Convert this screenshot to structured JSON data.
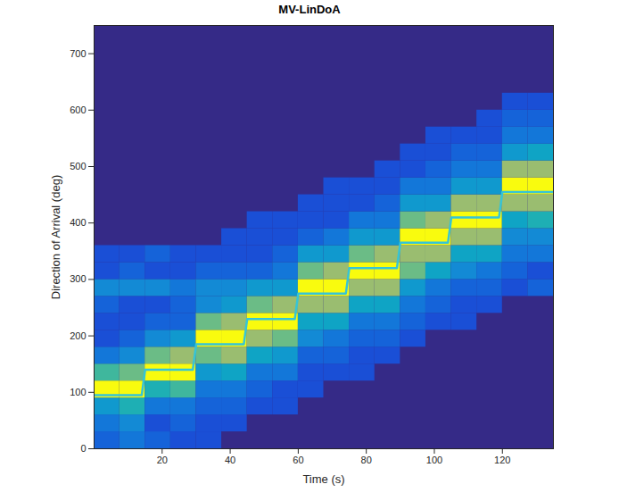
{
  "chart_data": {
    "type": "heatmap",
    "title": "MV-LinDoA",
    "x_label": "Time (s)",
    "y_label": "Direction of Arrival (deg)",
    "xlim": [
      0,
      135
    ],
    "ylim": [
      0,
      750
    ],
    "xticks": [
      20,
      40,
      60,
      80,
      100,
      120
    ],
    "yticks": [
      0,
      100,
      200,
      300,
      400,
      500,
      600,
      700
    ],
    "time_edges": [
      0,
      7.5,
      15,
      22.5,
      30,
      37.5,
      45,
      52.5,
      60,
      67.5,
      75,
      82.5,
      90,
      97.5,
      105,
      112.5,
      120,
      127.5,
      135
    ],
    "doa_edges": [
      0,
      30,
      60,
      90,
      120,
      150,
      180,
      210,
      240,
      270,
      300,
      330,
      360,
      390,
      420,
      450,
      480,
      510,
      540,
      570,
      600,
      630,
      660,
      690,
      720,
      750
    ],
    "power": [
      [
        0.35,
        0.4,
        0.5,
        1.0,
        0.65,
        0.4,
        0.3,
        0.3,
        0.35,
        0.45,
        0.3,
        0.3,
        null,
        null,
        null,
        null,
        null,
        null,
        null,
        null,
        null,
        null,
        null,
        null,
        null
      ],
      [
        0.4,
        0.45,
        0.6,
        1.0,
        0.7,
        0.45,
        0.35,
        0.3,
        0.3,
        0.45,
        0.35,
        0.3,
        null,
        null,
        null,
        null,
        null,
        null,
        null,
        null,
        null,
        null,
        null,
        null,
        null
      ],
      [
        0.35,
        0.3,
        0.4,
        0.6,
        1.0,
        0.7,
        0.45,
        0.35,
        0.3,
        0.45,
        0.3,
        0.35,
        null,
        null,
        null,
        null,
        null,
        null,
        null,
        null,
        null,
        null,
        null,
        null,
        null
      ],
      [
        0.3,
        0.35,
        0.4,
        0.65,
        1.0,
        0.75,
        0.5,
        0.35,
        0.35,
        0.4,
        0.3,
        0.3,
        null,
        null,
        null,
        null,
        null,
        null,
        null,
        null,
        null,
        null,
        null,
        null,
        null
      ],
      [
        0.3,
        0.3,
        0.35,
        0.4,
        0.5,
        0.7,
        1.0,
        0.7,
        0.45,
        0.45,
        0.35,
        0.3,
        null,
        null,
        null,
        null,
        null,
        null,
        null,
        null,
        null,
        null,
        null,
        null,
        null
      ],
      [
        null,
        0.3,
        0.35,
        0.4,
        0.55,
        0.75,
        1.0,
        0.75,
        0.5,
        0.45,
        0.35,
        0.3,
        0.3,
        null,
        null,
        null,
        null,
        null,
        null,
        null,
        null,
        null,
        null,
        null,
        null
      ],
      [
        null,
        null,
        0.3,
        0.35,
        0.4,
        0.55,
        0.75,
        1.0,
        0.7,
        0.5,
        0.35,
        0.3,
        0.3,
        0.3,
        null,
        null,
        null,
        null,
        null,
        null,
        null,
        null,
        null,
        null,
        null
      ],
      [
        null,
        null,
        0.3,
        0.3,
        0.4,
        0.5,
        0.7,
        1.0,
        0.75,
        0.5,
        0.4,
        0.35,
        0.3,
        0.3,
        null,
        null,
        null,
        null,
        null,
        null,
        null,
        null,
        null,
        null,
        null
      ],
      [
        null,
        null,
        null,
        0.3,
        0.3,
        0.35,
        0.45,
        0.55,
        0.75,
        1.0,
        0.7,
        0.5,
        0.35,
        0.3,
        0.3,
        null,
        null,
        null,
        null,
        null,
        null,
        null,
        null,
        null,
        null
      ],
      [
        null,
        null,
        null,
        null,
        0.3,
        0.35,
        0.4,
        0.55,
        0.75,
        1.0,
        0.75,
        0.5,
        0.4,
        0.3,
        0.3,
        0.3,
        null,
        null,
        null,
        null,
        null,
        null,
        null,
        null,
        null
      ],
      [
        null,
        null,
        null,
        null,
        0.3,
        0.3,
        0.35,
        0.4,
        0.55,
        0.75,
        1.0,
        0.7,
        0.5,
        0.4,
        0.3,
        0.3,
        null,
        null,
        null,
        null,
        null,
        null,
        null,
        null,
        null
      ],
      [
        null,
        null,
        null,
        null,
        null,
        0.3,
        0.35,
        0.4,
        0.55,
        0.75,
        1.0,
        0.75,
        0.5,
        0.4,
        0.35,
        0.3,
        0.3,
        null,
        null,
        null,
        null,
        null,
        null,
        null,
        null
      ],
      [
        null,
        null,
        null,
        null,
        null,
        null,
        0.3,
        0.35,
        0.4,
        0.5,
        0.7,
        0.75,
        1.0,
        0.7,
        0.5,
        0.4,
        0.3,
        0.3,
        null,
        null,
        null,
        null,
        null,
        null,
        null
      ],
      [
        null,
        null,
        null,
        null,
        null,
        null,
        null,
        0.3,
        0.35,
        0.4,
        0.55,
        0.75,
        1.0,
        0.75,
        0.5,
        0.4,
        0.35,
        0.3,
        0.3,
        null,
        null,
        null,
        null,
        null,
        null
      ],
      [
        null,
        null,
        null,
        null,
        null,
        null,
        null,
        0.3,
        0.3,
        0.35,
        0.45,
        0.55,
        0.75,
        1.0,
        0.75,
        0.5,
        0.4,
        0.35,
        0.3,
        null,
        null,
        null,
        null,
        null,
        null
      ],
      [
        null,
        null,
        null,
        null,
        null,
        null,
        null,
        null,
        0.3,
        0.35,
        0.4,
        0.55,
        0.75,
        1.0,
        0.75,
        0.5,
        0.4,
        0.35,
        0.3,
        0.3,
        null,
        null,
        null,
        null,
        null
      ],
      [
        null,
        null,
        null,
        null,
        null,
        null,
        null,
        null,
        null,
        0.3,
        0.35,
        0.4,
        0.45,
        0.55,
        0.75,
        1.0,
        0.75,
        0.5,
        0.4,
        0.35,
        0.3,
        null,
        null,
        null,
        null
      ],
      [
        null,
        null,
        null,
        null,
        null,
        null,
        null,
        null,
        null,
        0.35,
        0.3,
        0.4,
        0.45,
        0.6,
        0.75,
        1.0,
        0.75,
        0.55,
        0.4,
        0.35,
        0.3,
        null,
        null,
        null,
        null
      ]
    ],
    "series": [
      {
        "type": "line",
        "color": "#36c4d6",
        "x": [
          0,
          14,
          15,
          29,
          30,
          44,
          45,
          59,
          60,
          74,
          75,
          89,
          90,
          104,
          105,
          119,
          120,
          135
        ],
        "values": [
          95,
          95,
          140,
          140,
          185,
          185,
          230,
          230,
          275,
          275,
          320,
          320,
          365,
          365,
          410,
          410,
          455,
          455
        ]
      }
    ]
  }
}
